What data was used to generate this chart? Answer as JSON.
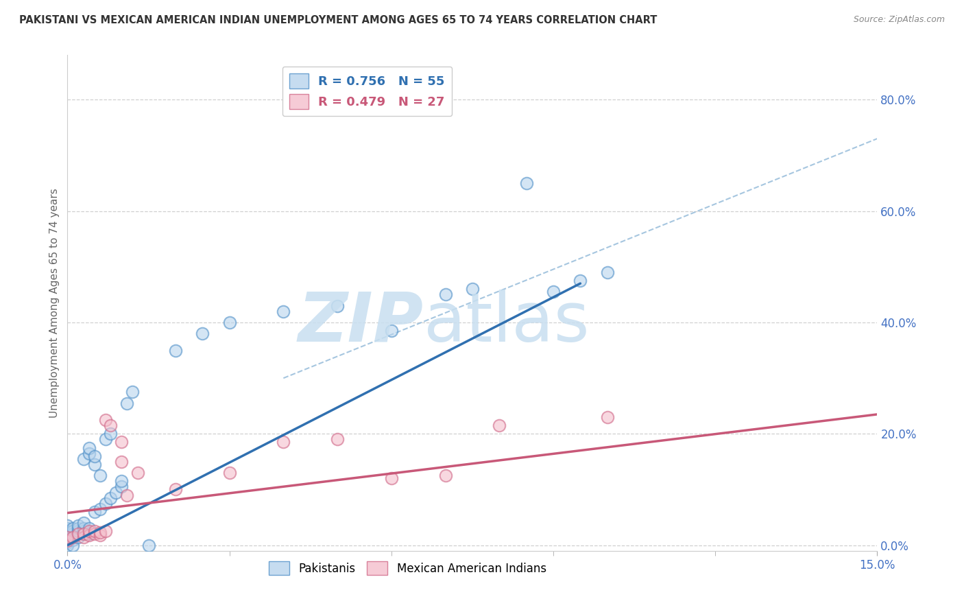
{
  "title": "PAKISTANI VS MEXICAN AMERICAN INDIAN UNEMPLOYMENT AMONG AGES 65 TO 74 YEARS CORRELATION CHART",
  "source": "Source: ZipAtlas.com",
  "ylabel": "Unemployment Among Ages 65 to 74 years",
  "xlim": [
    0.0,
    0.15
  ],
  "ylim": [
    -0.01,
    0.88
  ],
  "xtick_vals": [
    0.0,
    0.15
  ],
  "xtick_labels": [
    "0.0%",
    "15.0%"
  ],
  "ytick_right_vals": [
    0.0,
    0.2,
    0.4,
    0.6,
    0.8
  ],
  "ytick_right_labels": [
    "0.0%",
    "20.0%",
    "40.0%",
    "60.0%",
    "80.0%"
  ],
  "blue_R": "0.756",
  "blue_N": "55",
  "pink_R": "0.479",
  "pink_N": "27",
  "blue_fill": "#b8d4ed",
  "blue_edge": "#5090c8",
  "blue_line": "#3070b0",
  "pink_fill": "#f4bfcc",
  "pink_edge": "#d06888",
  "pink_line": "#c85878",
  "diag_color": "#90b8d8",
  "title_color": "#333333",
  "source_color": "#888888",
  "axis_label_color": "#666666",
  "tick_label_color": "#4472c4",
  "grid_color": "#d0d0d0",
  "background": "#ffffff",
  "blue_x": [
    0.0,
    0.0,
    0.0,
    0.0,
    0.0,
    0.0,
    0.0,
    0.0,
    0.001,
    0.001,
    0.001,
    0.001,
    0.001,
    0.001,
    0.002,
    0.002,
    0.002,
    0.002,
    0.002,
    0.003,
    0.003,
    0.003,
    0.003,
    0.003,
    0.004,
    0.004,
    0.004,
    0.004,
    0.005,
    0.005,
    0.005,
    0.006,
    0.006,
    0.007,
    0.007,
    0.008,
    0.008,
    0.009,
    0.01,
    0.01,
    0.011,
    0.012,
    0.015,
    0.02,
    0.025,
    0.03,
    0.04,
    0.05,
    0.06,
    0.07,
    0.075,
    0.085,
    0.09,
    0.095,
    0.1
  ],
  "blue_y": [
    0.005,
    0.01,
    0.015,
    0.02,
    0.025,
    0.03,
    0.035,
    0.0,
    0.01,
    0.015,
    0.02,
    0.025,
    0.03,
    0.0,
    0.015,
    0.02,
    0.025,
    0.03,
    0.035,
    0.02,
    0.025,
    0.03,
    0.04,
    0.155,
    0.02,
    0.03,
    0.165,
    0.175,
    0.06,
    0.145,
    0.16,
    0.065,
    0.125,
    0.075,
    0.19,
    0.085,
    0.2,
    0.095,
    0.105,
    0.115,
    0.255,
    0.275,
    0.0,
    0.35,
    0.38,
    0.4,
    0.42,
    0.43,
    0.385,
    0.45,
    0.46,
    0.65,
    0.455,
    0.475,
    0.49
  ],
  "pink_x": [
    0.0,
    0.0,
    0.001,
    0.002,
    0.003,
    0.003,
    0.004,
    0.004,
    0.005,
    0.005,
    0.006,
    0.006,
    0.007,
    0.007,
    0.008,
    0.01,
    0.01,
    0.011,
    0.013,
    0.02,
    0.03,
    0.04,
    0.05,
    0.06,
    0.07,
    0.08,
    0.1
  ],
  "pink_y": [
    0.008,
    0.015,
    0.015,
    0.02,
    0.015,
    0.02,
    0.018,
    0.025,
    0.02,
    0.025,
    0.018,
    0.023,
    0.025,
    0.225,
    0.215,
    0.15,
    0.185,
    0.09,
    0.13,
    0.1,
    0.13,
    0.185,
    0.19,
    0.12,
    0.125,
    0.215,
    0.23
  ],
  "blue_regline_x": [
    0.0,
    0.095
  ],
  "blue_regline_y": [
    0.0,
    0.47
  ],
  "pink_regline_x": [
    0.0,
    0.15
  ],
  "pink_regline_y": [
    0.058,
    0.235
  ],
  "diagline_x": [
    0.04,
    0.15
  ],
  "diagline_y": [
    0.3,
    0.73
  ]
}
